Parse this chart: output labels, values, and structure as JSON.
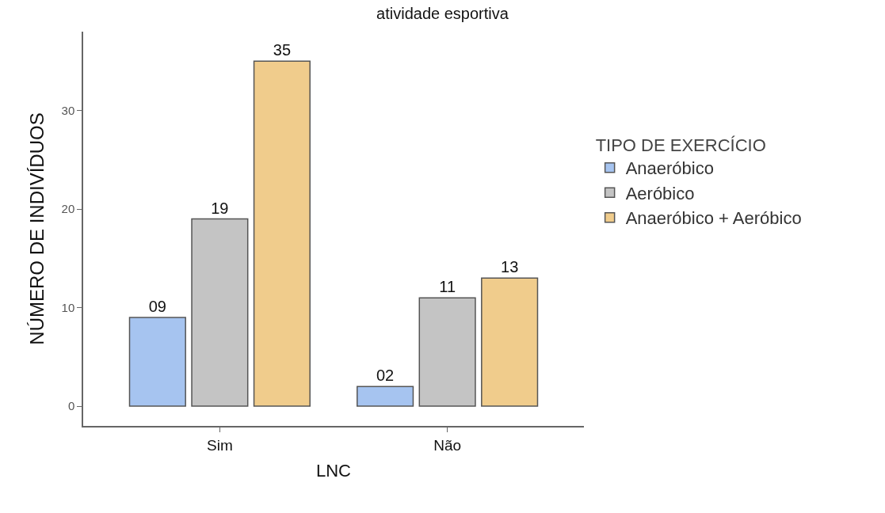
{
  "chart_data": {
    "type": "bar",
    "title": "atividade esportiva",
    "xlabel": "LNC",
    "ylabel": "NÚMERO DE INDIVÍDUOS",
    "legend_title": "TIPO DE EXERCÍCIO",
    "categories": [
      "Sim",
      "Não"
    ],
    "series": [
      {
        "name": "Anaeróbico",
        "color": "#a6c4f0",
        "values": [
          9,
          2
        ],
        "value_labels": [
          "09",
          "02"
        ]
      },
      {
        "name": "Aeróbico",
        "color": "#c4c4c4",
        "values": [
          19,
          11
        ],
        "value_labels": [
          "19",
          "11"
        ]
      },
      {
        "name": "Anaeróbico + Aeróbico",
        "color": "#f0cc8c",
        "values": [
          35,
          13
        ],
        "value_labels": [
          "35",
          "13"
        ]
      }
    ],
    "ylim": [
      -2,
      38
    ],
    "yticks": [
      0,
      10,
      20,
      30
    ],
    "legend": "right"
  }
}
